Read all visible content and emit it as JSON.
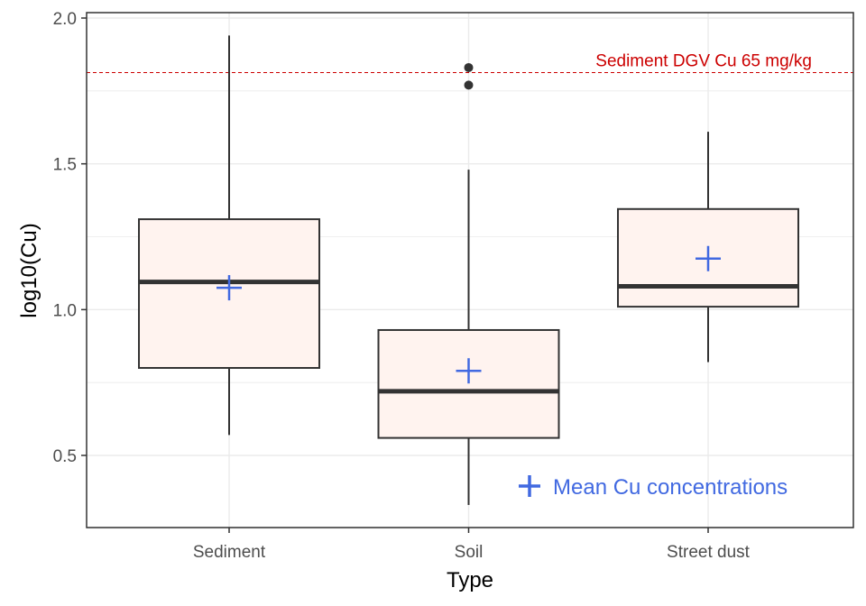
{
  "chart_data": {
    "type": "box",
    "xlabel": "Type",
    "ylabel": "log10(Cu)",
    "ylim": [
      0.25,
      2.0
    ],
    "yticks": [
      0.5,
      1.0,
      1.5,
      2.0
    ],
    "ytick_labels": [
      "0.5",
      "1.0",
      "1.5",
      "2.0"
    ],
    "grid": true,
    "categories": [
      "Sediment",
      "Soil",
      "Street dust"
    ],
    "boxes": [
      {
        "category": "Sediment",
        "whisker_low": 0.57,
        "q1": 0.8,
        "median": 1.095,
        "q3": 1.31,
        "whisker_high": 1.94,
        "mean": 1.075,
        "outliers": []
      },
      {
        "category": "Soil",
        "whisker_low": 0.33,
        "q1": 0.56,
        "median": 0.72,
        "q3": 0.93,
        "whisker_high": 1.48,
        "mean": 0.79,
        "outliers": [
          1.77,
          1.83
        ]
      },
      {
        "category": "Street dust",
        "whisker_low": 0.82,
        "q1": 1.01,
        "median": 1.08,
        "q3": 1.345,
        "whisker_high": 1.61,
        "mean": 1.175,
        "outliers": []
      }
    ],
    "reference_line": {
      "value": 1.813,
      "label": "Sediment DGV Cu 65 mg/kg",
      "color": "#cc0000",
      "style": "dashed"
    },
    "legend": {
      "label": "Mean Cu concentrations",
      "marker": "plus",
      "color": "#4169e1",
      "placement": "bottom-right"
    },
    "colors": {
      "box_fill": "#fff3ef",
      "box_stroke": "#333333",
      "mean_marker": "#4169e1",
      "grid": "#ebebeb",
      "panel_border": "#333333"
    }
  }
}
